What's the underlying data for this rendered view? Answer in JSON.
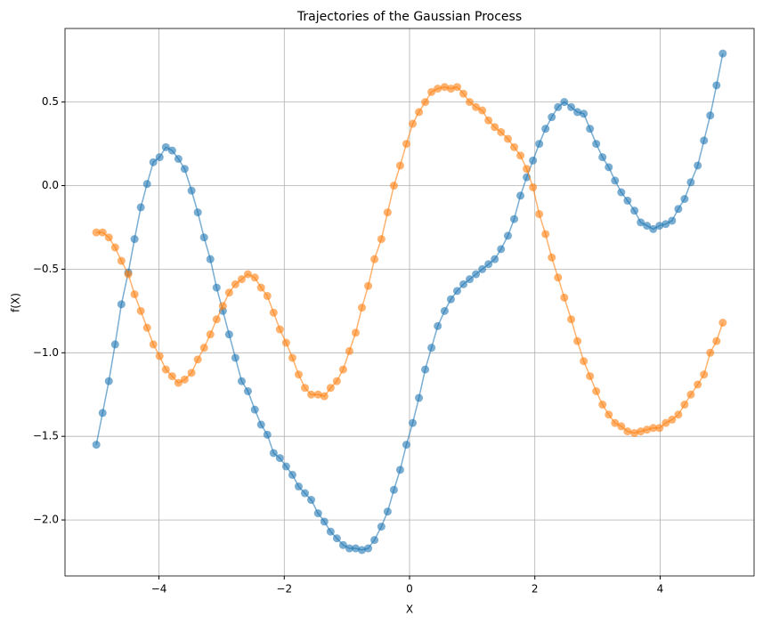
{
  "chart_data": {
    "type": "line",
    "title": "Trajectories of the Gaussian Process",
    "xlabel": "X",
    "ylabel": "f(X)",
    "x": [
      -5.0,
      -4.9,
      -4.8,
      -4.7,
      -4.6,
      -4.49,
      -4.39,
      -4.29,
      -4.19,
      -4.09,
      -3.99,
      -3.89,
      -3.79,
      -3.69,
      -3.59,
      -3.48,
      -3.38,
      -3.28,
      -3.18,
      -3.08,
      -2.98,
      -2.88,
      -2.78,
      -2.68,
      -2.58,
      -2.47,
      -2.37,
      -2.27,
      -2.17,
      -2.07,
      -1.97,
      -1.87,
      -1.77,
      -1.67,
      -1.57,
      -1.46,
      -1.36,
      -1.26,
      -1.16,
      -1.06,
      -0.96,
      -0.86,
      -0.76,
      -0.66,
      -0.56,
      -0.45,
      -0.35,
      -0.25,
      -0.15,
      -0.05,
      0.05,
      0.15,
      0.25,
      0.35,
      0.45,
      0.56,
      0.66,
      0.76,
      0.86,
      0.96,
      1.06,
      1.16,
      1.26,
      1.36,
      1.46,
      1.57,
      1.67,
      1.77,
      1.87,
      1.97,
      2.07,
      2.17,
      2.27,
      2.37,
      2.47,
      2.58,
      2.68,
      2.78,
      2.88,
      2.98,
      3.08,
      3.18,
      3.28,
      3.38,
      3.48,
      3.59,
      3.69,
      3.79,
      3.89,
      3.99,
      4.09,
      4.19,
      4.29,
      4.39,
      4.49,
      4.6,
      4.7,
      4.8,
      4.9,
      5.0
    ],
    "series": [
      {
        "color": "#1f77b4",
        "values": [
          -1.55,
          -1.36,
          -1.17,
          -0.95,
          -0.71,
          -0.52,
          -0.32,
          -0.13,
          0.01,
          0.14,
          0.17,
          0.23,
          0.21,
          0.16,
          0.1,
          -0.03,
          -0.16,
          -0.31,
          -0.44,
          -0.61,
          -0.75,
          -0.89,
          -1.03,
          -1.17,
          -1.23,
          -1.34,
          -1.43,
          -1.49,
          -1.6,
          -1.63,
          -1.68,
          -1.73,
          -1.8,
          -1.84,
          -1.88,
          -1.96,
          -2.01,
          -2.07,
          -2.11,
          -2.15,
          -2.17,
          -2.17,
          -2.18,
          -2.17,
          -2.12,
          -2.04,
          -1.95,
          -1.82,
          -1.7,
          -1.55,
          -1.42,
          -1.27,
          -1.1,
          -0.97,
          -0.84,
          -0.75,
          -0.68,
          -0.63,
          -0.59,
          -0.56,
          -0.53,
          -0.5,
          -0.47,
          -0.44,
          -0.38,
          -0.3,
          -0.2,
          -0.06,
          0.05,
          0.15,
          0.25,
          0.34,
          0.41,
          0.47,
          0.5,
          0.47,
          0.44,
          0.43,
          0.34,
          0.25,
          0.17,
          0.11,
          0.03,
          -0.04,
          -0.09,
          -0.15,
          -0.22,
          -0.24,
          -0.26,
          -0.24,
          -0.23,
          -0.21,
          -0.14,
          -0.08,
          0.02,
          0.12,
          0.27,
          0.42,
          0.6,
          0.79
        ]
      },
      {
        "color": "#ff7f0e",
        "values": [
          -0.28,
          -0.28,
          -0.31,
          -0.37,
          -0.45,
          -0.53,
          -0.65,
          -0.75,
          -0.85,
          -0.95,
          -1.02,
          -1.1,
          -1.14,
          -1.18,
          -1.16,
          -1.12,
          -1.04,
          -0.97,
          -0.89,
          -0.8,
          -0.72,
          -0.64,
          -0.59,
          -0.56,
          -0.53,
          -0.55,
          -0.61,
          -0.66,
          -0.76,
          -0.86,
          -0.94,
          -1.03,
          -1.13,
          -1.21,
          -1.25,
          -1.25,
          -1.26,
          -1.21,
          -1.17,
          -1.1,
          -0.99,
          -0.88,
          -0.73,
          -0.6,
          -0.44,
          -0.32,
          -0.16,
          0.0,
          0.12,
          0.25,
          0.37,
          0.44,
          0.5,
          0.56,
          0.58,
          0.59,
          0.58,
          0.59,
          0.55,
          0.5,
          0.47,
          0.45,
          0.39,
          0.35,
          0.32,
          0.28,
          0.23,
          0.18,
          0.1,
          -0.01,
          -0.17,
          -0.29,
          -0.43,
          -0.55,
          -0.67,
          -0.8,
          -0.93,
          -1.05,
          -1.14,
          -1.23,
          -1.31,
          -1.37,
          -1.42,
          -1.44,
          -1.47,
          -1.48,
          -1.47,
          -1.46,
          -1.45,
          -1.45,
          -1.42,
          -1.4,
          -1.37,
          -1.31,
          -1.25,
          -1.19,
          -1.13,
          -1.0,
          -0.93,
          -0.82
        ]
      }
    ],
    "xlim": [
      -5.5,
      5.5
    ],
    "ylim": [
      -2.335,
      0.94
    ],
    "xticks": [
      {
        "value": -4,
        "label": "−4"
      },
      {
        "value": -2,
        "label": "−2"
      },
      {
        "value": 0,
        "label": "0"
      },
      {
        "value": 2,
        "label": "2"
      },
      {
        "value": 4,
        "label": "4"
      }
    ],
    "yticks": [
      {
        "value": -2,
        "label": "−2.0"
      },
      {
        "value": -1.5,
        "label": "−1.5"
      },
      {
        "value": -1,
        "label": "−1.0"
      },
      {
        "value": -0.5,
        "label": "−0.5"
      },
      {
        "value": 0,
        "label": "0.0"
      },
      0.5
    ],
    "grid": true,
    "alpha": 0.6
  }
}
